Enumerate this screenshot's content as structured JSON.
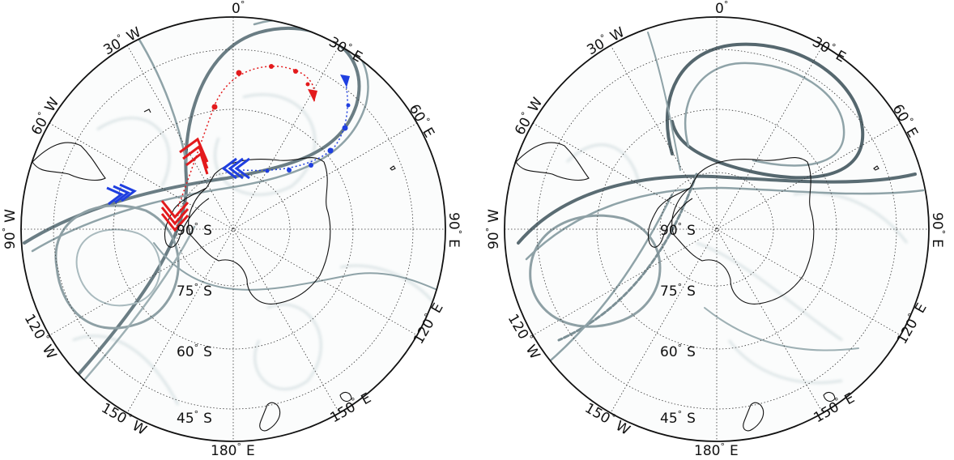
{
  "figure": {
    "panels": [
      {
        "id": "left",
        "center_label": {
          "value": "90",
          "unit": "S"
        },
        "lat_labels": [
          {
            "value": "75",
            "unit": "S"
          },
          {
            "value": "60",
            "unit": "S"
          },
          {
            "value": "45",
            "unit": "S"
          }
        ],
        "lon_labels": [
          {
            "value": "0",
            "unit": ""
          },
          {
            "value": "30",
            "unit": "E"
          },
          {
            "value": "60",
            "unit": "E"
          },
          {
            "value": "90",
            "unit": "E"
          },
          {
            "value": "120",
            "unit": "E"
          },
          {
            "value": "150",
            "unit": "E"
          },
          {
            "value": "180",
            "unit": "E"
          },
          {
            "value": "150",
            "unit": "W"
          },
          {
            "value": "120",
            "unit": "W"
          },
          {
            "value": "90",
            "unit": "W"
          },
          {
            "value": "60",
            "unit": "W"
          },
          {
            "value": "30",
            "unit": "W"
          }
        ],
        "trajectories": [
          {
            "color": "#e31a1c",
            "direction": "eastward-then-north"
          },
          {
            "color": "#1f3fe0",
            "direction": "westward"
          }
        ]
      },
      {
        "id": "right",
        "center_label": {
          "value": "90",
          "unit": "S"
        },
        "lat_labels": [
          {
            "value": "75",
            "unit": "S"
          },
          {
            "value": "60",
            "unit": "S"
          },
          {
            "value": "45",
            "unit": "S"
          }
        ],
        "lon_labels": [
          {
            "value": "0",
            "unit": ""
          },
          {
            "value": "30",
            "unit": "E"
          },
          {
            "value": "60",
            "unit": "E"
          },
          {
            "value": "90",
            "unit": "E"
          },
          {
            "value": "120",
            "unit": "E"
          },
          {
            "value": "150",
            "unit": "E"
          },
          {
            "value": "180",
            "unit": "E"
          },
          {
            "value": "150",
            "unit": "W"
          },
          {
            "value": "120",
            "unit": "W"
          },
          {
            "value": "90",
            "unit": "W"
          },
          {
            "value": "60",
            "unit": "W"
          },
          {
            "value": "30",
            "unit": "W"
          }
        ]
      }
    ],
    "colors": {
      "filament": "#5f7078",
      "filament_light": "#b9c9cc",
      "coast": "#111111",
      "grid": "#333333",
      "red": "#e31a1c",
      "blue": "#1f3fe0"
    }
  }
}
